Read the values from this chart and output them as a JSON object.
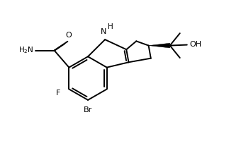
{
  "bg_color": "#ffffff",
  "line_color": "#000000",
  "lw": 1.4,
  "fs": 7.5,
  "fig_width": 3.4,
  "fig_height": 2.0,
  "dpi": 100,
  "xlim": [
    -3.0,
    4.5
  ],
  "ylim": [
    -2.3,
    2.3
  ]
}
